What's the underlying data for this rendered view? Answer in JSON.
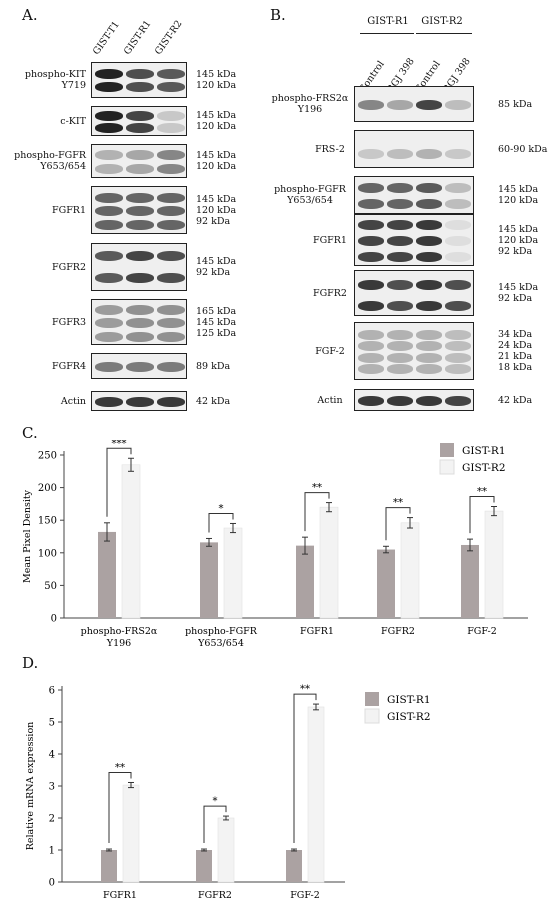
{
  "panelA": {
    "letter": "A.",
    "columns": [
      "GIST-T1",
      "GIST-R1",
      "GIST-R2"
    ],
    "rows": [
      {
        "label": [
          "phospho-KIT",
          "Y719"
        ],
        "sizes": [
          "145 kDa",
          "120 kDa"
        ]
      },
      {
        "label": [
          "c-KIT"
        ],
        "sizes": [
          "145 kDa",
          "120 kDa"
        ]
      },
      {
        "label": [
          "phospho-FGFR",
          "Y653/654"
        ],
        "sizes": [
          "145 kDa",
          "120 kDa"
        ]
      },
      {
        "label": [
          "FGFR1"
        ],
        "sizes": [
          "145 kDa",
          "120 kDa",
          "92 kDa"
        ]
      },
      {
        "label": [
          "FGFR2"
        ],
        "sizes": [
          "145 kDa",
          "92 kDa"
        ]
      },
      {
        "label": [
          "FGFR3"
        ],
        "sizes": [
          "165 kDa",
          "145 kDa",
          "125 kDa"
        ]
      },
      {
        "label": [
          "FGFR4"
        ],
        "sizes": [
          "89 kDa"
        ]
      },
      {
        "label": [
          "Actin"
        ],
        "sizes": [
          "42 kDa"
        ]
      }
    ]
  },
  "panelB": {
    "letter": "B.",
    "groups": [
      "GIST-R1",
      "GIST-R2"
    ],
    "columns": [
      "Control",
      "BGJ 398",
      "Control",
      "BGJ 398"
    ],
    "rows": [
      {
        "label": [
          "phospho-FRS2α",
          "Y196"
        ],
        "sizes": [
          "85 kDa"
        ]
      },
      {
        "label": [
          "FRS-2"
        ],
        "sizes": [
          "60-90 kDa"
        ]
      },
      {
        "label": [
          "phospho-FGFR",
          "Y653/654"
        ],
        "sizes": [
          "145 kDa",
          "120 kDa"
        ]
      },
      {
        "label": [
          "FGFR1"
        ],
        "sizes": [
          "145 kDa",
          "120 kDa",
          "92 kDa"
        ]
      },
      {
        "label": [
          "FGFR2"
        ],
        "sizes": [
          "145 kDa",
          "92 kDa"
        ]
      },
      {
        "label": [
          "FGF-2"
        ],
        "sizes": [
          "34 kDa",
          "24 kDa",
          "21 kDa",
          "18 kDa"
        ]
      },
      {
        "label": [
          "Actin"
        ],
        "sizes": [
          "42 kDa"
        ]
      }
    ]
  },
  "chart_data": [
    {
      "panel": "C.",
      "type": "bar",
      "ylabel": "Mean Pixel Density",
      "ylim": [
        0,
        250
      ],
      "yticks": [
        0,
        50,
        100,
        150,
        200,
        250
      ],
      "categories": [
        "phospho-FRS2α Y196",
        "phospho-FGFR Y653/654",
        "FGFR1",
        "FGFR2",
        "FGF-2"
      ],
      "series": [
        {
          "name": "GIST-R1",
          "values": [
            132,
            116,
            111,
            105,
            112
          ],
          "errors": [
            14,
            6,
            13,
            5,
            9
          ],
          "color": "#aba2a2"
        },
        {
          "name": "GIST-R2",
          "values": [
            235,
            138,
            170,
            146,
            164
          ],
          "errors": [
            10,
            7,
            7,
            8,
            7
          ],
          "color": "#f3f3f3"
        }
      ],
      "significance": [
        "***",
        "*",
        "**",
        "**",
        "**"
      ],
      "legend": "top-right"
    },
    {
      "panel": "D.",
      "type": "bar",
      "ylabel": "Relative mRNA expression",
      "ylim": [
        0,
        6
      ],
      "yticks": [
        0,
        1,
        2,
        3,
        4,
        5,
        6
      ],
      "categories": [
        "FGFR1",
        "FGFR2",
        "FGF-2"
      ],
      "series": [
        {
          "name": "GIST-R1",
          "values": [
            1,
            1,
            1
          ],
          "errors": [
            0.03,
            0.03,
            0.03
          ],
          "color": "#aba2a2"
        },
        {
          "name": "GIST-R2",
          "values": [
            3.03,
            2,
            5.47
          ],
          "errors": [
            0.08,
            0.06,
            0.09
          ],
          "color": "#f3f3f3"
        }
      ],
      "significance": [
        "**",
        "*",
        "**"
      ],
      "legend": "top-right"
    }
  ]
}
